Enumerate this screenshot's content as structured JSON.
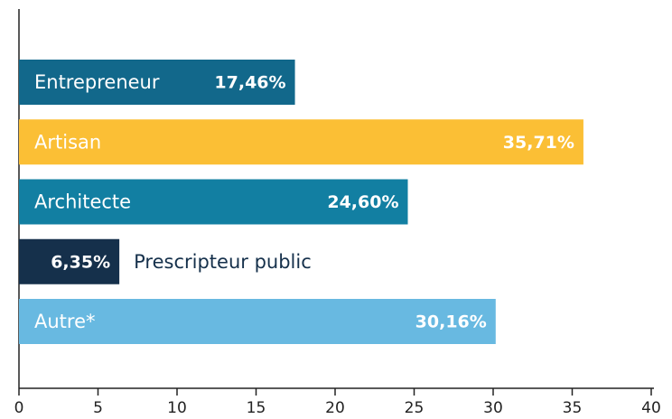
{
  "chart_data": {
    "type": "bar",
    "orientation": "horizontal",
    "categories": [
      "Entrepreneur",
      "Artisan",
      "Architecte",
      "Prescripteur public",
      "Autre*"
    ],
    "values": [
      17.46,
      35.71,
      24.6,
      6.35,
      30.16
    ],
    "value_labels": [
      "17,46%",
      "35,71%",
      "24,60%",
      "6,35%",
      "30,16%"
    ],
    "colors": [
      "#12688b",
      "#fbbf35",
      "#127fa2",
      "#15304b",
      "#68b9e1"
    ],
    "xlim": [
      0,
      40
    ],
    "xticks": [
      0,
      5,
      10,
      15,
      20,
      25,
      30,
      35,
      40
    ],
    "grid": false
  }
}
